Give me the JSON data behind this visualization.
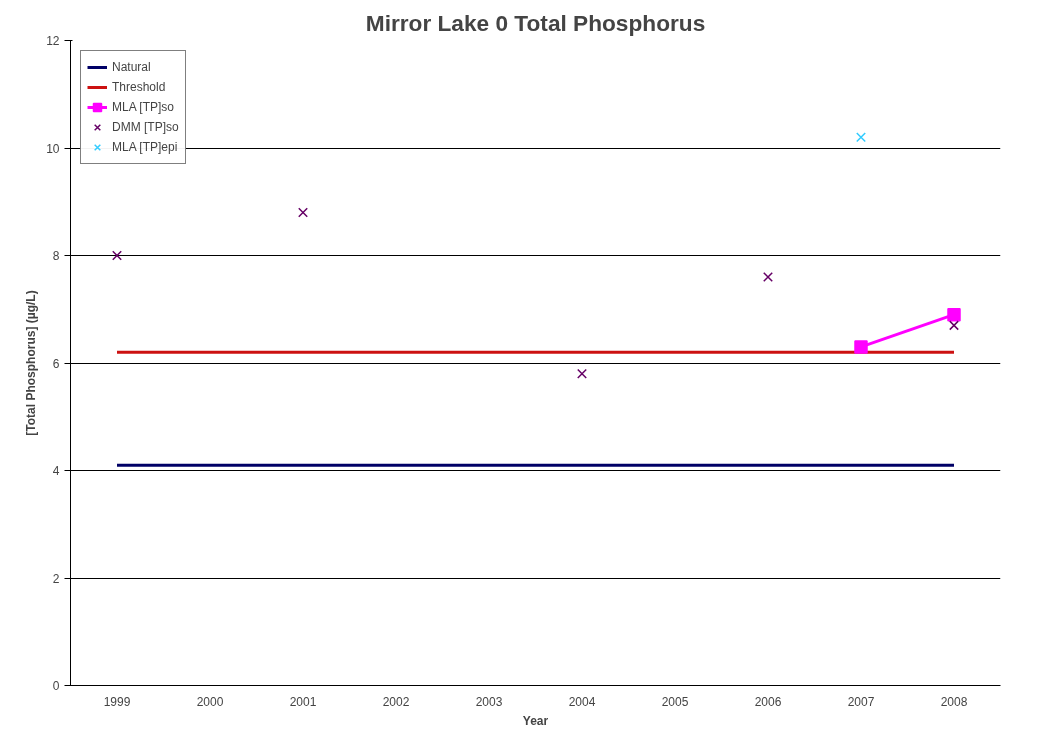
{
  "chart_data": {
    "type": "line",
    "title": "Mirror Lake 0 Total Phosphorus",
    "xlabel": "Year",
    "ylabel": "[Total Phosphorus] (µg/L)",
    "categories": [
      "1999",
      "2000",
      "2001",
      "2002",
      "2003",
      "2004",
      "2005",
      "2006",
      "2007",
      "2008"
    ],
    "series": [
      {
        "name": "Natural",
        "color": "#000066",
        "values": [
          4.1,
          4.1,
          4.1,
          4.1,
          4.1,
          4.1,
          4.1,
          4.1,
          4.1,
          4.1
        ],
        "marker": "none"
      },
      {
        "name": "Threshold",
        "color": "#cc1111",
        "values": [
          6.2,
          6.2,
          6.2,
          6.2,
          6.2,
          6.2,
          6.2,
          6.2,
          6.2,
          6.2
        ],
        "marker": "none"
      },
      {
        "name": "MLA [TP]so",
        "color": "#ff00ff",
        "values": [
          null,
          null,
          null,
          null,
          null,
          null,
          null,
          null,
          6.3,
          6.9
        ],
        "marker": "square"
      },
      {
        "name": "DMM [TP]so",
        "color": "#660066",
        "values": [
          8.0,
          null,
          8.8,
          null,
          null,
          5.8,
          null,
          7.6,
          null,
          6.7
        ],
        "marker": "cross",
        "type": "scatter"
      },
      {
        "name": "MLA [TP]epi",
        "color": "#33ccff",
        "values": [
          null,
          null,
          null,
          null,
          null,
          null,
          null,
          null,
          10.2,
          null
        ],
        "marker": "cross",
        "type": "scatter"
      }
    ],
    "ylim": [
      0,
      12
    ],
    "yticks": [
      0,
      2,
      4,
      6,
      8,
      10,
      12
    ],
    "grid": "y",
    "legend": "top left"
  }
}
